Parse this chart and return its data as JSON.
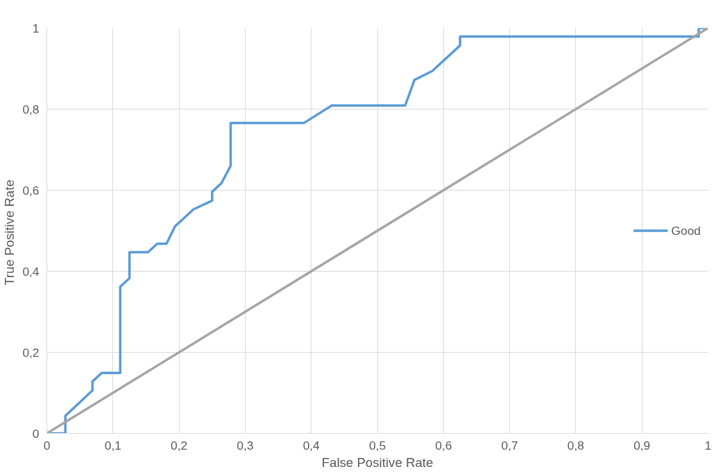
{
  "chart_data": {
    "type": "line",
    "xlabel": "False Positive Rate",
    "ylabel": "True  Positive Rate",
    "series": [
      {
        "name": "Good",
        "color": "#5b9bd5",
        "x": [
          0,
          0.028,
          0.028,
          0.069,
          0.069,
          0.083,
          0.111,
          0.111,
          0.125,
          0.125,
          0.153,
          0.167,
          0.181,
          0.194,
          0.222,
          0.25,
          0.25,
          0.264,
          0.278,
          0.278,
          0.389,
          0.431,
          0.542,
          0.556,
          0.583,
          0.625,
          0.625,
          0.986,
          0.986,
          1
        ],
        "values": [
          0,
          0,
          0.043,
          0.106,
          0.128,
          0.149,
          0.149,
          0.362,
          0.383,
          0.447,
          0.447,
          0.468,
          0.468,
          0.511,
          0.553,
          0.574,
          0.596,
          0.617,
          0.66,
          0.766,
          0.766,
          0.809,
          0.809,
          0.872,
          0.894,
          0.957,
          0.979,
          0.979,
          1,
          1
        ]
      },
      {
        "color": "#a5a5a5",
        "x": [
          0,
          1
        ],
        "values": [
          0,
          1
        ]
      }
    ],
    "xlim": [
      0,
      1
    ],
    "ylim": [
      0,
      1
    ],
    "xticks": [
      0,
      {
        "value": 0.1,
        "label": "0,1"
      },
      {
        "value": 0.2,
        "label": "0,2"
      },
      {
        "value": 0.3,
        "label": "0,3"
      },
      {
        "value": 0.4,
        "label": "0,4"
      },
      {
        "value": 0.5,
        "label": "0,5"
      },
      {
        "value": 0.6,
        "label": "0,6"
      },
      {
        "value": 0.7,
        "label": "0,7"
      },
      {
        "value": 0.8,
        "label": "0,8"
      },
      {
        "value": 0.9,
        "label": "0,9"
      },
      1
    ],
    "yticks": [
      0,
      {
        "value": 0.2,
        "label": "0,2"
      },
      {
        "value": 0.4,
        "label": "0,4"
      },
      {
        "value": 0.6,
        "label": "0,6"
      },
      {
        "value": 0.8,
        "label": "0,8"
      },
      1
    ],
    "grid": true,
    "legend": "right",
    "marker": "none",
    "line_style": "solid"
  }
}
